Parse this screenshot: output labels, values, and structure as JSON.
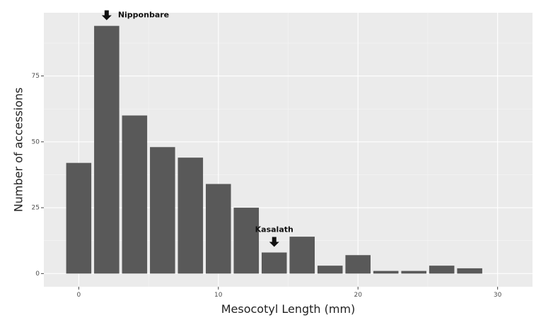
{
  "chart_data": {
    "type": "bar",
    "title": "",
    "xlabel": "Mesocotyl Length (mm)",
    "ylabel": "Number of accessions",
    "xlim": [
      -2.5,
      32.5
    ],
    "ylim": [
      -5,
      99
    ],
    "x_ticks": [
      0,
      10,
      20,
      30
    ],
    "y_ticks": [
      0,
      25,
      50,
      75
    ],
    "grid": true,
    "bin_width": 2,
    "bins": [
      {
        "x": 0,
        "y": 42
      },
      {
        "x": 2,
        "y": 94
      },
      {
        "x": 4,
        "y": 60
      },
      {
        "x": 6,
        "y": 48
      },
      {
        "x": 8,
        "y": 44
      },
      {
        "x": 10,
        "y": 34
      },
      {
        "x": 12,
        "y": 25
      },
      {
        "x": 14,
        "y": 8
      },
      {
        "x": 16,
        "y": 14
      },
      {
        "x": 18,
        "y": 3
      },
      {
        "x": 20,
        "y": 7
      },
      {
        "x": 22,
        "y": 1
      },
      {
        "x": 24,
        "y": 1
      },
      {
        "x": 26,
        "y": 3
      },
      {
        "x": 28,
        "y": 2
      }
    ],
    "annotations": [
      {
        "label": "Nipponbare",
        "x": 2,
        "y": 94
      },
      {
        "label": "Kasalath",
        "x": 14,
        "y": 8
      }
    ]
  }
}
